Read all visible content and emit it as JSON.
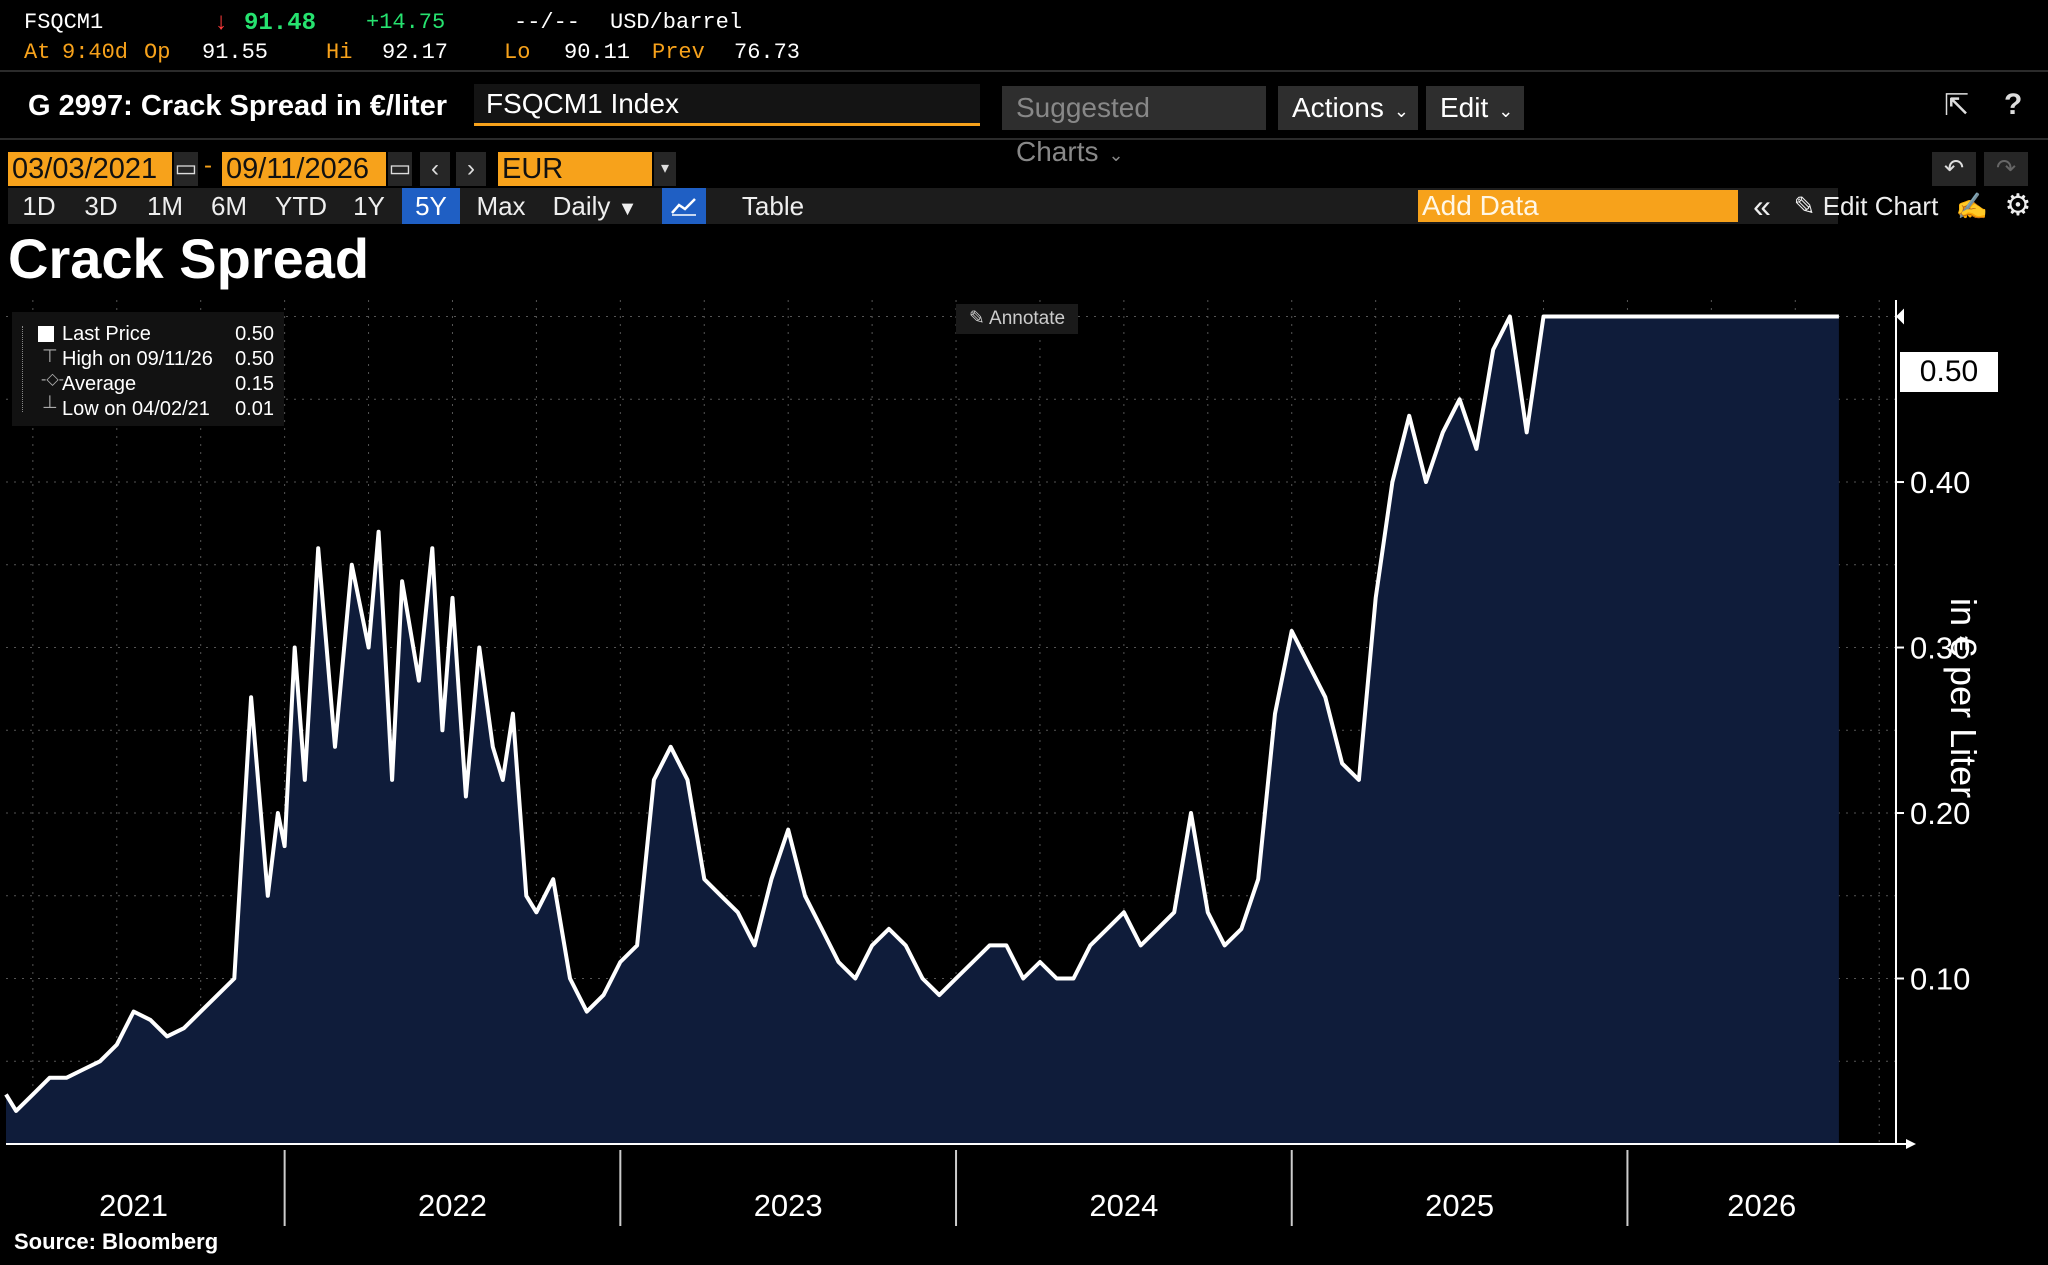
{
  "quote": {
    "ticker": "FSQCM1",
    "arrow": "↓",
    "last": "91.48",
    "change": "+14.75",
    "bidask": "--/--",
    "unit": "USD/barrel",
    "at_label": "At",
    "time": "9:40d",
    "op_label": "Op",
    "open": "91.55",
    "hi_label": "Hi",
    "high": "92.17",
    "lo_label": "Lo",
    "low": "90.11",
    "prev_label": "Prev",
    "prev": "76.73"
  },
  "header": {
    "title": "G 2997: Crack Spread in €/liter",
    "security": "FSQCM1 Index",
    "suggested_label": "Suggested Charts",
    "actions_label": "Actions",
    "edit_label": "Edit"
  },
  "controls": {
    "start_date": "03/03/2021",
    "end_date": "09/11/2026",
    "currency": "EUR",
    "ranges": [
      "1D",
      "3D",
      "1M",
      "6M",
      "YTD",
      "1Y",
      "5Y",
      "Max"
    ],
    "selected_range": "5Y",
    "period": "Daily",
    "table_label": "Table",
    "add_data_placeholder": "Add Data",
    "edit_chart_label": "Edit Chart"
  },
  "legend": {
    "last_label": "Last Price",
    "last_value": "0.50",
    "high_label": "High on 09/11/26",
    "high_value": "0.50",
    "avg_label": "Average",
    "avg_value": "0.15",
    "low_label": "Low on 04/02/21",
    "low_value": "0.01"
  },
  "annotate_label": "Annotate",
  "source": "Source: Bloomberg",
  "colors": {
    "accent": "#f7a21b",
    "area": "#0f1c3a",
    "line": "#ffffff",
    "selected": "#1f5fc4"
  },
  "chart_data": {
    "type": "area",
    "title": "Crack Spread",
    "ylabel": "in € per Liter",
    "ylim": [
      0.0,
      0.51
    ],
    "yticks": [
      "0.10",
      "0.20",
      "0.30",
      "0.40"
    ],
    "ytick_values": [
      0.1,
      0.2,
      0.3,
      0.4
    ],
    "last_value_label": "0.50",
    "year_labels": [
      "2021",
      "2022",
      "2023",
      "2024",
      "2025",
      "2026"
    ],
    "year_positions": [
      2021.55,
      2022.5,
      2023.5,
      2024.5,
      2025.5,
      2026.4
    ],
    "year_dividers": [
      2022.0,
      2023.0,
      2024.0,
      2025.0,
      2026.0
    ],
    "xlim": [
      2021.17,
      2026.8
    ],
    "grid": true,
    "series": [
      {
        "x": [
          2021.17,
          2021.2,
          2021.25,
          2021.3,
          2021.35,
          2021.4,
          2021.45,
          2021.5,
          2021.55,
          2021.6,
          2021.65,
          2021.7,
          2021.75,
          2021.8,
          2021.85,
          2021.9,
          2021.95,
          2021.98,
          2022.0,
          2022.03,
          2022.06,
          2022.1,
          2022.15,
          2022.2,
          2022.25,
          2022.28,
          2022.32,
          2022.35,
          2022.4,
          2022.44,
          2022.47,
          2022.5,
          2022.54,
          2022.58,
          2022.62,
          2022.65,
          2022.68,
          2022.72,
          2022.75,
          2022.8,
          2022.85,
          2022.9,
          2022.95,
          2023.0,
          2023.05,
          2023.1,
          2023.15,
          2023.2,
          2023.25,
          2023.3,
          2023.35,
          2023.4,
          2023.45,
          2023.5,
          2023.55,
          2023.6,
          2023.65,
          2023.7,
          2023.75,
          2023.8,
          2023.85,
          2023.9,
          2023.95,
          2024.0,
          2024.05,
          2024.1,
          2024.15,
          2024.2,
          2024.25,
          2024.3,
          2024.35,
          2024.4,
          2024.45,
          2024.5,
          2024.55,
          2024.6,
          2024.65,
          2024.7,
          2024.75,
          2024.8,
          2024.85,
          2024.9,
          2024.95,
          2025.0,
          2025.05,
          2025.1,
          2025.15,
          2025.2,
          2025.25,
          2025.3,
          2025.35,
          2025.4,
          2025.45,
          2025.5,
          2025.55,
          2025.6,
          2025.65,
          2025.7,
          2025.75,
          2025.8,
          2025.85,
          2025.9,
          2025.95,
          2026.0,
          2026.05,
          2026.1,
          2026.15,
          2026.2,
          2026.25,
          2026.3,
          2026.35,
          2026.4,
          2026.45,
          2026.5,
          2026.55,
          2026.6,
          2026.63
        ],
        "values": [
          0.03,
          0.02,
          0.03,
          0.04,
          0.04,
          0.045,
          0.05,
          0.06,
          0.08,
          0.075,
          0.065,
          0.07,
          0.08,
          0.09,
          0.1,
          0.27,
          0.15,
          0.2,
          0.18,
          0.3,
          0.22,
          0.36,
          0.24,
          0.35,
          0.3,
          0.37,
          0.22,
          0.34,
          0.28,
          0.36,
          0.25,
          0.33,
          0.21,
          0.3,
          0.24,
          0.22,
          0.26,
          0.15,
          0.14,
          0.16,
          0.1,
          0.08,
          0.09,
          0.11,
          0.12,
          0.22,
          0.24,
          0.22,
          0.16,
          0.15,
          0.14,
          0.12,
          0.16,
          0.19,
          0.15,
          0.13,
          0.11,
          0.1,
          0.12,
          0.13,
          0.12,
          0.1,
          0.09,
          0.1,
          0.11,
          0.12,
          0.12,
          0.1,
          0.11,
          0.1,
          0.1,
          0.12,
          0.13,
          0.14,
          0.12,
          0.13,
          0.14,
          0.2,
          0.14,
          0.12,
          0.13,
          0.16,
          0.26,
          0.31,
          0.29,
          0.27,
          0.23,
          0.22,
          0.33,
          0.4,
          0.44,
          0.4,
          0.43,
          0.45,
          0.42,
          0.48,
          0.5,
          0.43,
          0.5,
          0.5,
          0.5,
          0.5,
          0.5,
          0.5,
          0.5,
          0.5,
          0.5,
          0.5,
          0.5,
          0.5,
          0.5,
          0.5,
          0.5,
          0.5,
          0.5,
          0.5,
          0.5
        ]
      }
    ]
  }
}
